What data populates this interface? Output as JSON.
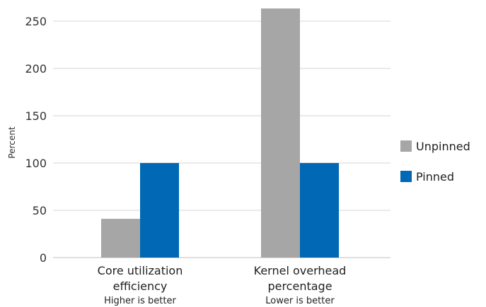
{
  "chart_data": {
    "type": "bar",
    "title": "",
    "xlabel": "",
    "ylabel": "Percent",
    "ylim": [
      0,
      260
    ],
    "yticks": [
      0,
      50,
      100,
      150,
      200,
      250
    ],
    "grid": true,
    "legend": "right",
    "categories": [
      {
        "line1": "Core utilization",
        "line2": "efficiency",
        "note": "Higher is better"
      },
      {
        "line1": "Kernel overhead",
        "line2": "percentage",
        "note": "Lower is better"
      }
    ],
    "series": [
      {
        "name": "Unpinned",
        "color": "#a6a6a6",
        "values": [
          41,
          264
        ]
      },
      {
        "name": "Pinned",
        "color": "#0068b5",
        "values": [
          100,
          100
        ]
      }
    ]
  }
}
